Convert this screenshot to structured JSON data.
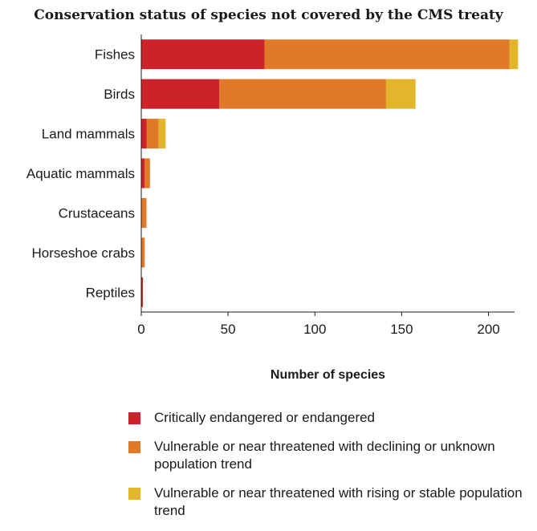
{
  "chart_data": {
    "type": "bar",
    "orientation": "horizontal",
    "stacked": true,
    "title": "Conservation status of species not covered by the CMS treaty",
    "xlabel": "Number of species",
    "ylabel": "",
    "xlim": [
      0,
      215
    ],
    "xticks": [
      0,
      50,
      100,
      150,
      200
    ],
    "grid": false,
    "legend_position": "bottom",
    "categories": [
      "Fishes",
      "Birds",
      "Land mammals",
      "Aquatic mammals",
      "Crustaceans",
      "Horseshoe crabs",
      "Reptiles"
    ],
    "series": [
      {
        "name": "Critically endangered or endangered",
        "color": "#cc2229",
        "values": [
          71,
          45,
          3,
          2,
          0,
          0,
          1
        ]
      },
      {
        "name": "Vulnerable or near threatened with declining or unknown population trend",
        "color": "#e07a28",
        "values": [
          141,
          96,
          7,
          3,
          3,
          2,
          0
        ]
      },
      {
        "name": "Vulnerable or near threatened with rising or stable population trend",
        "color": "#e3b52b",
        "values": [
          5,
          17,
          4,
          0,
          0,
          0,
          0
        ]
      }
    ]
  }
}
